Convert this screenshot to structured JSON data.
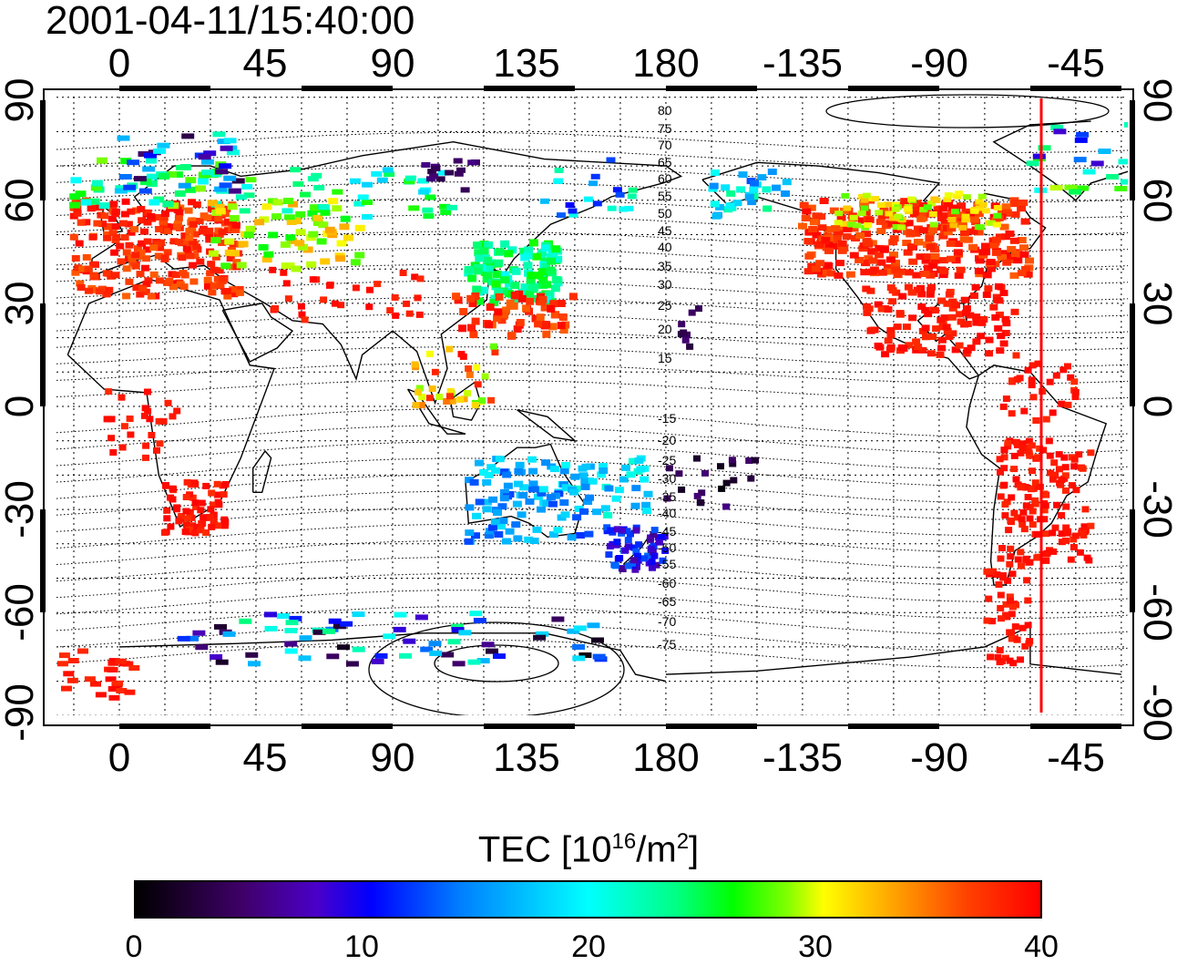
{
  "title": "2001-04-11/15:40:00",
  "axes": {
    "lon_ticks": [
      "0",
      "45",
      "90",
      "135",
      "180",
      "-135",
      "-90",
      "-45"
    ],
    "lat_ticks": [
      "90",
      "60",
      "30",
      "0",
      "-30",
      "-60",
      "-90"
    ]
  },
  "contour_labels": [
    "80",
    "75",
    "70",
    "65",
    "60",
    "55",
    "50",
    "45",
    "40",
    "35",
    "30",
    "25",
    "20",
    "15",
    "-15",
    "-20",
    "-25",
    "-30",
    "-35",
    "-40",
    "-45",
    "-50",
    "-55",
    "-60",
    "-65",
    "-70",
    "-75"
  ],
  "colorbar": {
    "label_main": "TEC  [10",
    "label_sup1": "16",
    "label_mid": "/m",
    "label_sup2": "2",
    "label_end": "]",
    "ticks": [
      "0",
      "10",
      "20",
      "30",
      "40"
    ],
    "range": [
      0,
      40
    ]
  },
  "colors": {
    "high_tec": "#ff0000",
    "marker_line": "#ff0000"
  }
}
